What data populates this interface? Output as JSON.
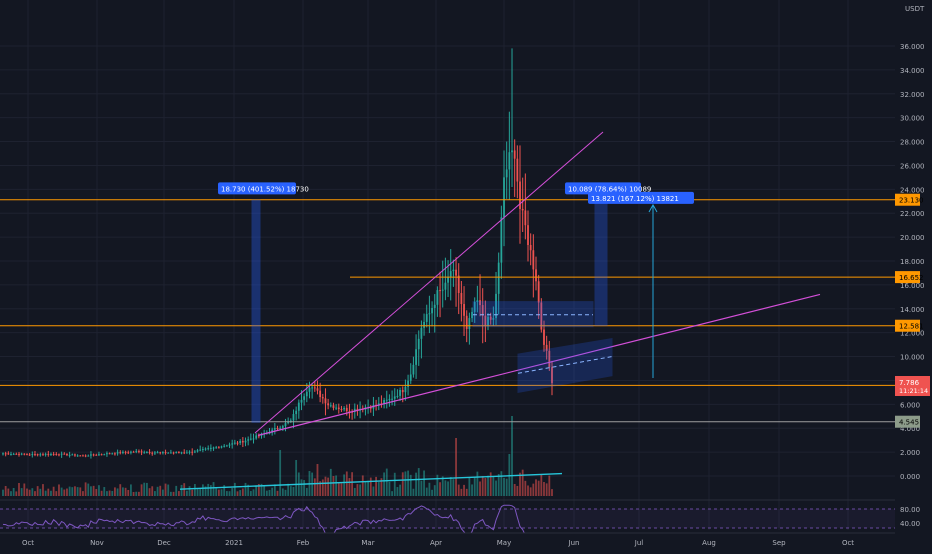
{
  "chart_data": {
    "type": "candlestick",
    "quote_currency": "USDT",
    "colors": {
      "background": "#131722",
      "up": "#26a69a",
      "down": "#ef5350",
      "grid": "#1e2230",
      "axis_text": "#b2b5be",
      "level_line": "#ff9800",
      "trend_line": "#d34fd8",
      "channel": "#2962ff",
      "label_bg": "#2962ff",
      "rsi_line": "#7e57c2",
      "green_level": "#4caf50",
      "arrow": "#26a6d8"
    },
    "y_axis": {
      "min": -0.5,
      "max": 38,
      "ticks": [
        "36.000",
        "34.000",
        "32.000",
        "30.000",
        "28.000",
        "26.000",
        "24.000",
        "22.000",
        "20.000",
        "18.000",
        "16.000",
        "14.000",
        "12.000",
        "10.000",
        "8.000",
        "6.000",
        "4.000",
        "2.000",
        "0.000"
      ]
    },
    "x_axis": {
      "months": [
        "Oct",
        "Nov",
        "Dec",
        "2021",
        "Feb",
        "Mar",
        "Apr",
        "May",
        "Jun",
        "Jul",
        "Aug",
        "Sep",
        "Oct"
      ]
    },
    "price_series": {
      "anchors": [
        [
          0,
          1.9
        ],
        [
          10,
          1.8
        ],
        [
          20,
          1.85
        ],
        [
          30,
          1.7
        ],
        [
          40,
          1.9
        ],
        [
          50,
          2.05
        ],
        [
          60,
          1.95
        ],
        [
          70,
          2.0
        ],
        [
          80,
          2.4
        ],
        [
          90,
          2.9
        ],
        [
          100,
          3.7
        ],
        [
          108,
          4.6
        ],
        [
          112,
          6.5
        ],
        [
          115,
          7.6
        ],
        [
          118,
          7.0
        ],
        [
          122,
          6.0
        ],
        [
          126,
          5.7
        ],
        [
          130,
          5.5
        ],
        [
          135,
          5.7
        ],
        [
          140,
          5.9
        ],
        [
          145,
          6.4
        ],
        [
          150,
          7.2
        ],
        [
          153,
          8.6
        ],
        [
          157,
          12.5
        ],
        [
          160,
          13.6
        ],
        [
          163,
          15.2
        ],
        [
          166,
          15.8
        ],
        [
          168,
          17.2
        ],
        [
          170,
          16.4
        ],
        [
          172,
          14.4
        ],
        [
          174,
          12.1
        ],
        [
          176,
          13.7
        ],
        [
          178,
          14.6
        ],
        [
          181,
          12.9
        ],
        [
          184,
          13.1
        ],
        [
          186,
          17.6
        ],
        [
          188,
          25.0
        ],
        [
          190,
          26.5
        ],
        [
          192,
          27.3
        ],
        [
          194,
          22.4
        ],
        [
          196,
          20.8
        ],
        [
          198,
          18.7
        ],
        [
          200,
          16.6
        ],
        [
          202,
          12.4
        ],
        [
          204,
          10.2
        ],
        [
          206,
          8.0
        ]
      ],
      "total_candles": 207
    },
    "last_price": "7.786",
    "countdown": "11:21:14",
    "levels": [
      {
        "value": 23.13,
        "label": "23.130"
      },
      {
        "value": 16.652,
        "label": "16.652"
      },
      {
        "value": 12.581,
        "label": "12.581"
      },
      {
        "value": 7.59,
        "label": "7.590"
      },
      {
        "value": 4.545,
        "label": "4.545"
      }
    ],
    "measure_labels": [
      "18.730 (401.52%) 18730",
      "10.089 (78.64%) 10089",
      "13.821 (167.12%) 13821"
    ],
    "rsi": {
      "ticks": [
        "80.00",
        "40.00"
      ],
      "upper": 80,
      "lower": 40
    }
  }
}
